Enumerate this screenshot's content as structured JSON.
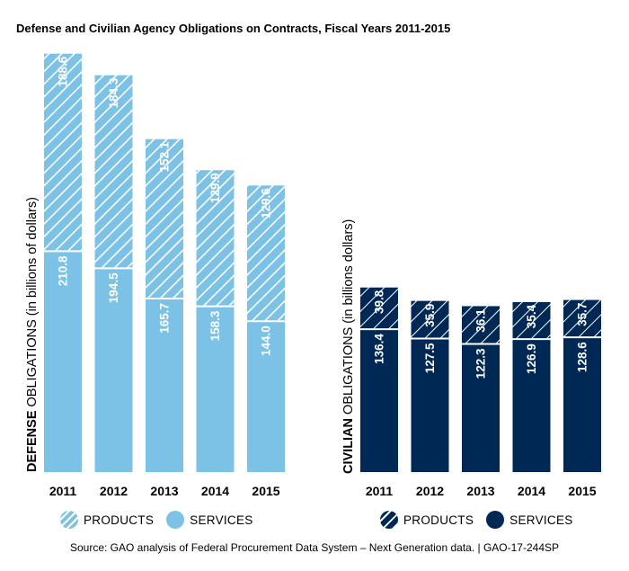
{
  "title": "Defense and Civilian Agency Obligations on Contracts, Fiscal Years 2011-2015",
  "source": "Source: GAO analysis of Federal Procurement Data System – Next Generation data.  |  GAO-17-244SP",
  "colors": {
    "defense": "#7cc1e6",
    "civilian": "#002855",
    "hatch": "#ffffff"
  },
  "chart_data": [
    {
      "type": "bar",
      "stacked": true,
      "ylabel_bold": "DEFENSE",
      "ylabel_rest": " OBLIGATIONS  (in billions of dollars)",
      "categories": [
        "2011",
        "2012",
        "2013",
        "2014",
        "2015"
      ],
      "series": [
        {
          "name": "SERVICES",
          "pattern": "solid",
          "values": [
            210.8,
            194.5,
            165.7,
            158.3,
            144.0
          ]
        },
        {
          "name": "PRODUCTS",
          "pattern": "hatched",
          "values": [
            188.6,
            184.3,
            152.1,
            129.9,
            129.6
          ]
        }
      ],
      "legend": [
        "PRODUCTS",
        "SERVICES"
      ],
      "legend_position": "bottom"
    },
    {
      "type": "bar",
      "stacked": true,
      "ylabel_bold": "CIVILIAN",
      "ylabel_rest": " OBLIGATIONS  (in billions dollars)",
      "categories": [
        "2011",
        "2012",
        "2013",
        "2014",
        "2015"
      ],
      "series": [
        {
          "name": "SERVICES",
          "pattern": "solid",
          "values": [
            136.4,
            127.5,
            122.3,
            126.9,
            128.6
          ]
        },
        {
          "name": "PRODUCTS",
          "pattern": "hatched",
          "values": [
            39.8,
            35.9,
            36.1,
            35.4,
            35.7
          ]
        }
      ],
      "legend": [
        "PRODUCTS",
        "SERVICES"
      ],
      "legend_position": "bottom"
    }
  ]
}
